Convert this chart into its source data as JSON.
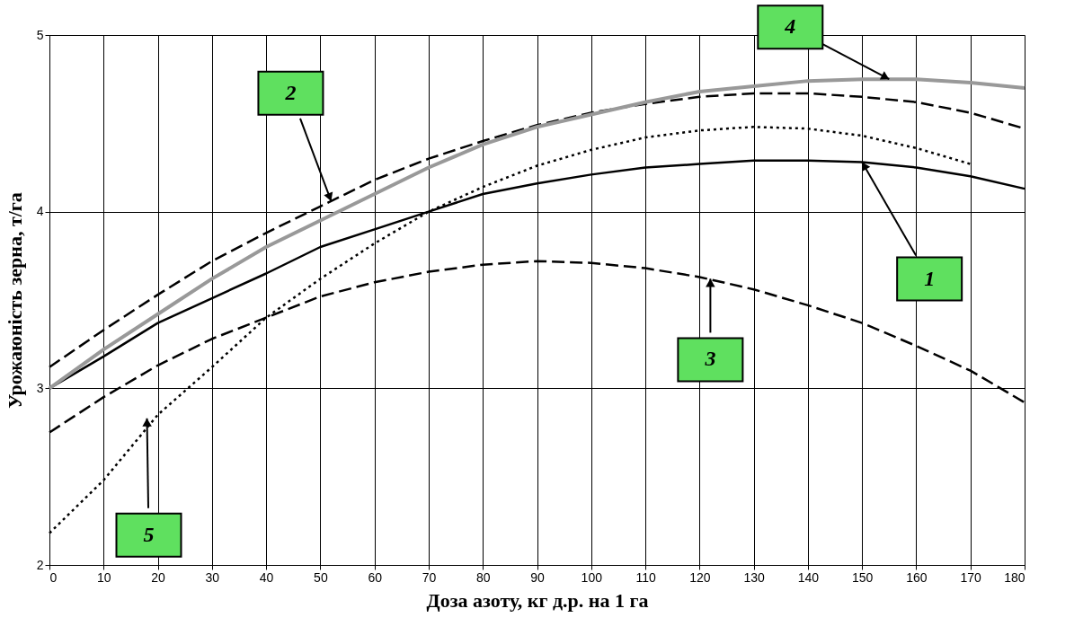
{
  "chart_data": {
    "type": "line",
    "xlabel": "Доза азоту, кг д.р. на 1 га",
    "ylabel": "Урожаюність зерна, т/га",
    "x": [
      0,
      10,
      20,
      30,
      40,
      50,
      60,
      70,
      80,
      90,
      100,
      110,
      120,
      130,
      140,
      150,
      160,
      170,
      180
    ],
    "series": [
      {
        "color": "#000000",
        "line_style": "solid",
        "values": [
          3.0,
          3.18,
          3.37,
          3.51,
          3.65,
          3.8,
          3.9,
          4.0,
          4.1,
          4.16,
          4.21,
          4.25,
          4.27,
          4.29,
          4.29,
          4.28,
          4.25,
          4.2,
          4.13
        ]
      },
      {
        "color": "#000000",
        "line_style": "dashed",
        "values": [
          3.12,
          3.33,
          3.53,
          3.72,
          3.88,
          4.03,
          4.18,
          4.3,
          4.4,
          4.49,
          4.56,
          4.61,
          4.65,
          4.67,
          4.67,
          4.65,
          4.62,
          4.56,
          4.47
        ]
      },
      {
        "color": "#000000",
        "line_style": "dashed",
        "values": [
          2.75,
          2.95,
          3.13,
          3.28,
          3.4,
          3.52,
          3.6,
          3.66,
          3.7,
          3.72,
          3.71,
          3.68,
          3.63,
          3.56,
          3.47,
          3.37,
          3.24,
          3.1,
          2.92
        ]
      },
      {
        "color": "#999999",
        "line_style": "solid",
        "values": [
          3.0,
          3.22,
          3.42,
          3.62,
          3.8,
          3.95,
          4.1,
          4.25,
          4.38,
          4.48,
          4.55,
          4.62,
          4.68,
          4.71,
          4.74,
          4.75,
          4.75,
          4.73,
          4.7
        ]
      },
      {
        "color": "#000000",
        "line_style": "dotted",
        "values": [
          2.18,
          2.48,
          2.85,
          3.12,
          3.4,
          3.62,
          3.82,
          4.0,
          4.14,
          4.26,
          4.35,
          4.42,
          4.46,
          4.48,
          4.47,
          4.43,
          4.36,
          4.27,
          null
        ]
      }
    ],
    "annotations": [
      {
        "text": "1",
        "x": 150,
        "y": 4.28
      },
      {
        "text": "2",
        "x": 52,
        "y": 4.06
      },
      {
        "text": "3",
        "x": 122,
        "y": 3.62
      },
      {
        "text": "4",
        "x": 155,
        "y": 4.75
      },
      {
        "text": "5",
        "x": 18,
        "y": 2.83
      }
    ],
    "xlim": [
      0,
      180
    ],
    "ylim": [
      2,
      5
    ],
    "xticks": [
      0,
      10,
      20,
      30,
      40,
      50,
      60,
      70,
      80,
      90,
      100,
      110,
      120,
      130,
      140,
      150,
      160,
      170,
      180
    ],
    "yticks": [
      2,
      3,
      4,
      5
    ],
    "grid": true
  }
}
